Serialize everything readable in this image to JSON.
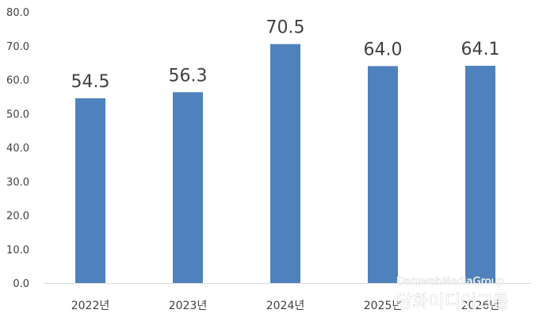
{
  "chart_data": {
    "type": "bar",
    "categories": [
      "2022년",
      "2023년",
      "2024년",
      "2025년",
      "2026년"
    ],
    "values": [
      54.5,
      56.3,
      70.5,
      64.0,
      64.1
    ],
    "data_labels": [
      "54.5",
      "56.3",
      "70.5",
      "64.0",
      "64.1"
    ],
    "title": "",
    "xlabel": "",
    "ylabel": "",
    "ylim": [
      0,
      80
    ],
    "yticks": [
      "0.0",
      "10.0",
      "20.0",
      "30.0",
      "40.0",
      "50.0",
      "60.0",
      "70.0",
      "80.0"
    ],
    "grid": false,
    "legend": "none",
    "bar_color": "#4f81bd",
    "axis_color": "#d9d9d9"
  },
  "watermark": {
    "line1": "DamwahMediaGroup",
    "line2": "담화미디어그룹"
  }
}
